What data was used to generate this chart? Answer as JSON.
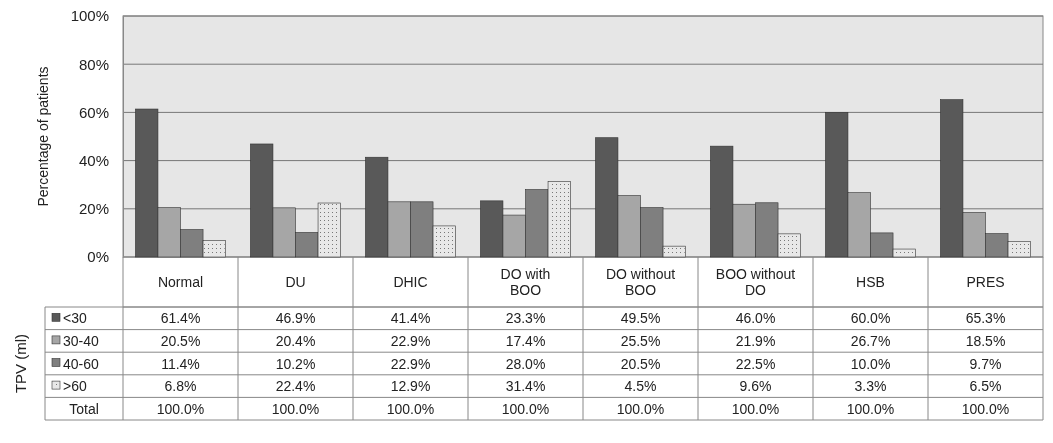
{
  "chart_data": {
    "type": "bar",
    "ylabel": "Percentage of patients",
    "legend_title": "TPV (ml)",
    "categories": [
      "Normal",
      "DU",
      "DHIC",
      "DO with BOO",
      "DO without BOO",
      "BOO without DO",
      "HSB",
      "PRES"
    ],
    "series": [
      {
        "name": "<30",
        "color": "#595959",
        "values": [
          61.4,
          46.9,
          41.4,
          23.3,
          49.5,
          46.0,
          60.0,
          65.3
        ],
        "value_labels": [
          "61.4%",
          "46.9%",
          "41.4%",
          "23.3%",
          "49.5%",
          "46.0%",
          "60.0%",
          "65.3%"
        ]
      },
      {
        "name": "30-40",
        "color": "#a6a6a6",
        "values": [
          20.5,
          20.4,
          22.9,
          17.4,
          25.5,
          21.9,
          26.7,
          18.5
        ],
        "value_labels": [
          "20.5%",
          "20.4%",
          "22.9%",
          "17.4%",
          "25.5%",
          "21.9%",
          "26.7%",
          "18.5%"
        ]
      },
      {
        "name": "40-60",
        "color": "#7f7f7f",
        "values": [
          11.4,
          10.2,
          22.9,
          28.0,
          20.5,
          22.5,
          10.0,
          9.7
        ],
        "value_labels": [
          "11.4%",
          "10.2%",
          "22.9%",
          "28.0%",
          "20.5%",
          "22.5%",
          "10.0%",
          "9.7%"
        ]
      },
      {
        "name": ">60",
        "color": "#e8e8e8",
        "values": [
          6.8,
          22.4,
          12.9,
          31.4,
          4.5,
          9.6,
          3.3,
          6.5
        ],
        "value_labels": [
          "6.8%",
          "22.4%",
          "12.9%",
          "31.4%",
          "4.5%",
          "9.6%",
          "3.3%",
          "6.5%"
        ]
      }
    ],
    "annotations": [
      "Total",
      "100.0%",
      "100.0%",
      "100.0%",
      "100.0%",
      "100.0%",
      "100.0%",
      "100.0%",
      "100.0%"
    ],
    "ylim": [
      0,
      100
    ],
    "yticks": [
      {
        "value": 0,
        "label": "0%"
      },
      {
        "value": 20,
        "label": "20%"
      },
      {
        "value": 40,
        "label": "40%"
      },
      {
        "value": 60,
        "label": "60%"
      },
      {
        "value": 80,
        "label": "80%"
      },
      {
        "value": 100,
        "label": "100%"
      }
    ],
    "grid": "y",
    "legend": "bottom"
  }
}
